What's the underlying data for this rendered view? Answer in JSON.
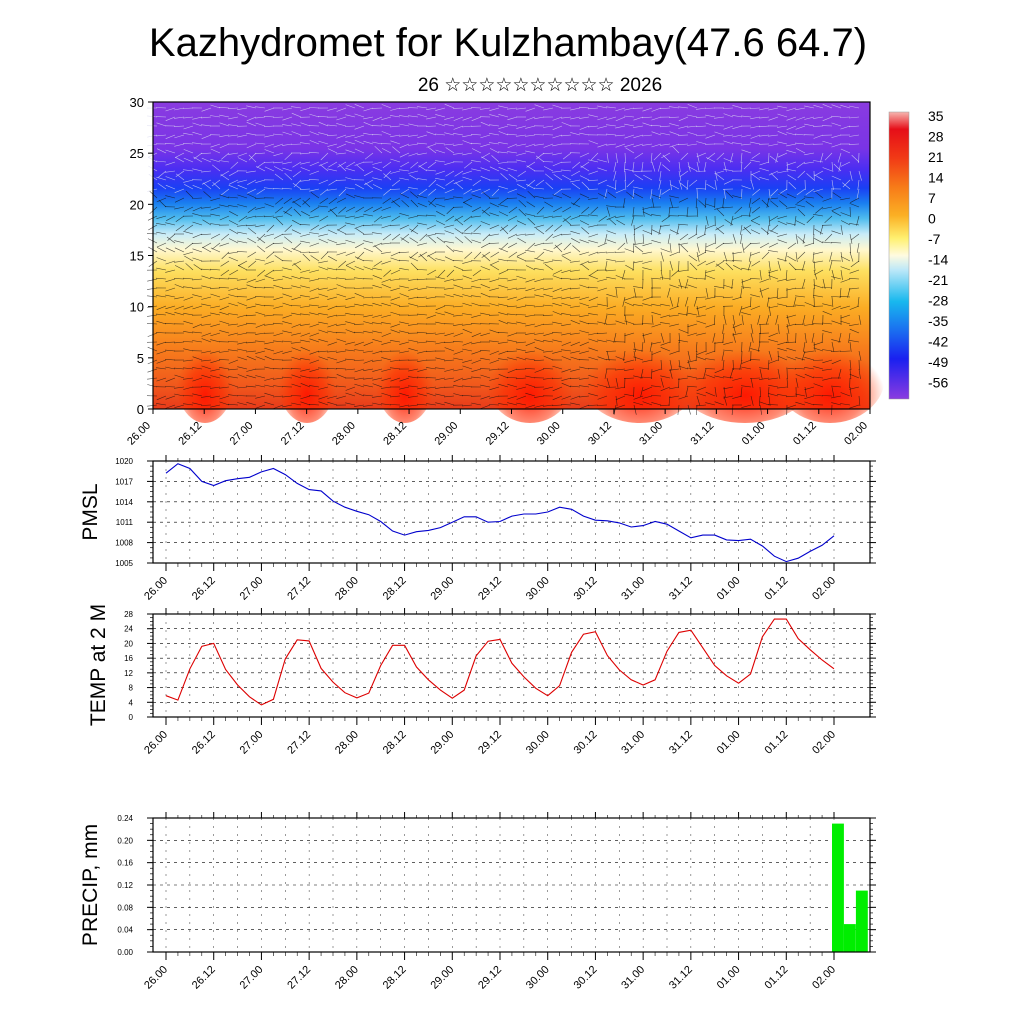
{
  "title": "Kazhydromet for Kulzhambay(47.6 64.7)",
  "subtitle": "26 ☆☆☆☆☆☆☆☆☆☆ 2026",
  "time_labels": [
    "26.00",
    "26.12",
    "27.00",
    "27.12",
    "28.00",
    "28.12",
    "29.00",
    "29.12",
    "30.00",
    "30.12",
    "31.00",
    "31.12",
    "01.00",
    "01.12",
    "02.00"
  ],
  "colors": {
    "pmsl_line": "#0000cc",
    "temp_line": "#dd0000",
    "precip_bar": "#00ee00",
    "grid": "#000000",
    "wind_barb": "#111111"
  },
  "chart_data": [
    {
      "type": "heatmap",
      "name": "vertical-temperature-section",
      "ylabel": "",
      "ylim": [
        0,
        30
      ],
      "yticks": [
        0,
        5,
        10,
        15,
        20,
        25,
        30
      ],
      "colorbar_labels": [
        "35",
        "28",
        "21",
        "14",
        "7",
        "0",
        "-7",
        "-14",
        "-21",
        "-28",
        "-35",
        "-42",
        "-49",
        "-56"
      ],
      "levels_note": "temperature by height (km) with wind barbs; warm (red) near surface, cold (violet) above 20"
    },
    {
      "type": "line",
      "name": "pmsl",
      "ylabel": "PMSL",
      "ylim": [
        1005,
        1020
      ],
      "yticks": [
        "1005",
        "1008",
        "1011",
        "1014",
        "1017",
        "1020"
      ],
      "x_index_range": [
        0,
        56
      ],
      "values": [
        1018.2,
        1019.6,
        1018.9,
        1017.0,
        1016.4,
        1017.1,
        1017.4,
        1017.6,
        1018.4,
        1018.9,
        1018.0,
        1016.7,
        1015.8,
        1015.6,
        1014.1,
        1013.2,
        1012.6,
        1012.1,
        1011.1,
        1009.7,
        1009.1,
        1009.6,
        1009.8,
        1010.2,
        1011.0,
        1011.8,
        1011.8,
        1011.0,
        1011.1,
        1011.9,
        1012.2,
        1012.2,
        1012.5,
        1013.2,
        1012.9,
        1011.9,
        1011.3,
        1011.2,
        1010.9,
        1010.3,
        1010.5,
        1011.1,
        1010.7,
        1009.7,
        1008.7,
        1009.1,
        1009.1,
        1008.4,
        1008.3,
        1008.5,
        1007.5,
        1006.0,
        1005.2,
        1005.7,
        1006.7,
        1007.6,
        1009.0
      ]
    },
    {
      "type": "line",
      "name": "temp-2m",
      "ylabel": "TEMP at 2 M",
      "ylim": [
        0,
        28
      ],
      "yticks": [
        "0",
        "4",
        "8",
        "12",
        "16",
        "20",
        "24",
        "28"
      ],
      "x_index_range": [
        0,
        56
      ],
      "values": [
        5.8,
        4.6,
        13.1,
        19.2,
        20.0,
        12.9,
        8.7,
        5.5,
        3.3,
        4.8,
        15.8,
        21.0,
        20.7,
        13.2,
        9.5,
        6.6,
        5.2,
        6.5,
        14.0,
        19.5,
        19.5,
        13.6,
        10.1,
        7.3,
        5.1,
        7.3,
        16.6,
        20.6,
        21.1,
        14.6,
        10.9,
        7.8,
        5.8,
        8.5,
        17.6,
        22.5,
        23.2,
        16.7,
        12.8,
        10.1,
        8.7,
        10.1,
        17.9,
        23.0,
        23.6,
        18.8,
        14.0,
        11.2,
        9.2,
        11.7,
        21.8,
        26.6,
        26.6,
        21.3,
        18.3,
        15.5,
        13.1
      ]
    },
    {
      "type": "bar",
      "name": "precip",
      "ylabel": "PRECIP, mm",
      "ylim": [
        0,
        0.24
      ],
      "yticks": [
        "0.00",
        "0.04",
        "0.08",
        "0.12",
        "0.16",
        "0.20",
        "0.24"
      ],
      "bars": [
        {
          "x_index": 56,
          "value": 0.23
        },
        {
          "x_index": 57,
          "value": 0.05
        },
        {
          "x_index": 58,
          "value": 0.11
        }
      ]
    }
  ]
}
